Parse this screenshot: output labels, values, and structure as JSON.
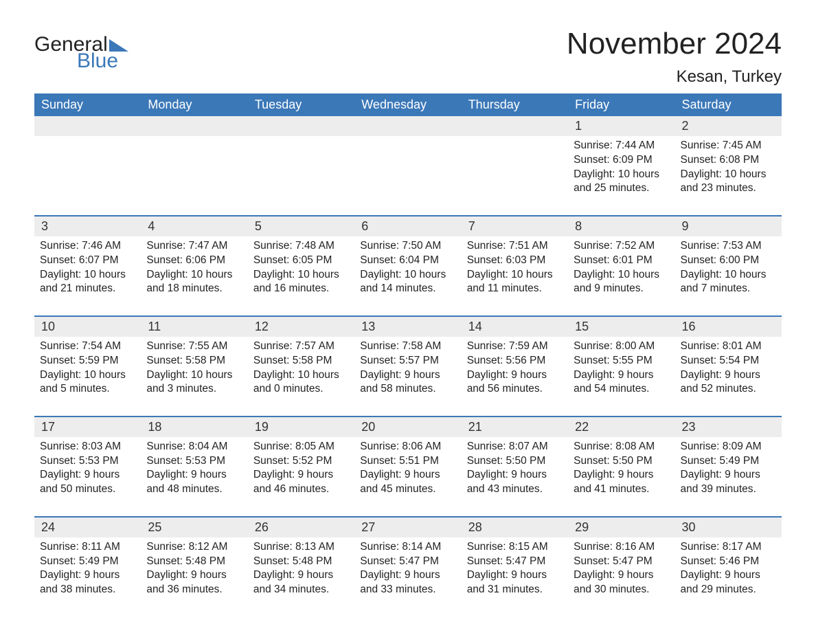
{
  "logo": {
    "general": "General",
    "blue": "Blue",
    "triangle_color": "#3b78b8"
  },
  "title": "November 2024",
  "location": "Kesan, Turkey",
  "colors": {
    "header_bg": "#3b78b8",
    "header_text": "#ffffff",
    "daynum_bg": "#ededed",
    "row_border": "#3b78b8",
    "text": "#222222",
    "background": "#ffffff"
  },
  "weekdays": [
    "Sunday",
    "Monday",
    "Tuesday",
    "Wednesday",
    "Thursday",
    "Friday",
    "Saturday"
  ],
  "labels": {
    "sunrise": "Sunrise:",
    "sunset": "Sunset:",
    "daylight": "Daylight:"
  },
  "weeks": [
    [
      null,
      null,
      null,
      null,
      null,
      {
        "day": "1",
        "sunrise": "7:44 AM",
        "sunset": "6:09 PM",
        "daylight": "10 hours and 25 minutes."
      },
      {
        "day": "2",
        "sunrise": "7:45 AM",
        "sunset": "6:08 PM",
        "daylight": "10 hours and 23 minutes."
      }
    ],
    [
      {
        "day": "3",
        "sunrise": "7:46 AM",
        "sunset": "6:07 PM",
        "daylight": "10 hours and 21 minutes."
      },
      {
        "day": "4",
        "sunrise": "7:47 AM",
        "sunset": "6:06 PM",
        "daylight": "10 hours and 18 minutes."
      },
      {
        "day": "5",
        "sunrise": "7:48 AM",
        "sunset": "6:05 PM",
        "daylight": "10 hours and 16 minutes."
      },
      {
        "day": "6",
        "sunrise": "7:50 AM",
        "sunset": "6:04 PM",
        "daylight": "10 hours and 14 minutes."
      },
      {
        "day": "7",
        "sunrise": "7:51 AM",
        "sunset": "6:03 PM",
        "daylight": "10 hours and 11 minutes."
      },
      {
        "day": "8",
        "sunrise": "7:52 AM",
        "sunset": "6:01 PM",
        "daylight": "10 hours and 9 minutes."
      },
      {
        "day": "9",
        "sunrise": "7:53 AM",
        "sunset": "6:00 PM",
        "daylight": "10 hours and 7 minutes."
      }
    ],
    [
      {
        "day": "10",
        "sunrise": "7:54 AM",
        "sunset": "5:59 PM",
        "daylight": "10 hours and 5 minutes."
      },
      {
        "day": "11",
        "sunrise": "7:55 AM",
        "sunset": "5:58 PM",
        "daylight": "10 hours and 3 minutes."
      },
      {
        "day": "12",
        "sunrise": "7:57 AM",
        "sunset": "5:58 PM",
        "daylight": "10 hours and 0 minutes."
      },
      {
        "day": "13",
        "sunrise": "7:58 AM",
        "sunset": "5:57 PM",
        "daylight": "9 hours and 58 minutes."
      },
      {
        "day": "14",
        "sunrise": "7:59 AM",
        "sunset": "5:56 PM",
        "daylight": "9 hours and 56 minutes."
      },
      {
        "day": "15",
        "sunrise": "8:00 AM",
        "sunset": "5:55 PM",
        "daylight": "9 hours and 54 minutes."
      },
      {
        "day": "16",
        "sunrise": "8:01 AM",
        "sunset": "5:54 PM",
        "daylight": "9 hours and 52 minutes."
      }
    ],
    [
      {
        "day": "17",
        "sunrise": "8:03 AM",
        "sunset": "5:53 PM",
        "daylight": "9 hours and 50 minutes."
      },
      {
        "day": "18",
        "sunrise": "8:04 AM",
        "sunset": "5:53 PM",
        "daylight": "9 hours and 48 minutes."
      },
      {
        "day": "19",
        "sunrise": "8:05 AM",
        "sunset": "5:52 PM",
        "daylight": "9 hours and 46 minutes."
      },
      {
        "day": "20",
        "sunrise": "8:06 AM",
        "sunset": "5:51 PM",
        "daylight": "9 hours and 45 minutes."
      },
      {
        "day": "21",
        "sunrise": "8:07 AM",
        "sunset": "5:50 PM",
        "daylight": "9 hours and 43 minutes."
      },
      {
        "day": "22",
        "sunrise": "8:08 AM",
        "sunset": "5:50 PM",
        "daylight": "9 hours and 41 minutes."
      },
      {
        "day": "23",
        "sunrise": "8:09 AM",
        "sunset": "5:49 PM",
        "daylight": "9 hours and 39 minutes."
      }
    ],
    [
      {
        "day": "24",
        "sunrise": "8:11 AM",
        "sunset": "5:49 PM",
        "daylight": "9 hours and 38 minutes."
      },
      {
        "day": "25",
        "sunrise": "8:12 AM",
        "sunset": "5:48 PM",
        "daylight": "9 hours and 36 minutes."
      },
      {
        "day": "26",
        "sunrise": "8:13 AM",
        "sunset": "5:48 PM",
        "daylight": "9 hours and 34 minutes."
      },
      {
        "day": "27",
        "sunrise": "8:14 AM",
        "sunset": "5:47 PM",
        "daylight": "9 hours and 33 minutes."
      },
      {
        "day": "28",
        "sunrise": "8:15 AM",
        "sunset": "5:47 PM",
        "daylight": "9 hours and 31 minutes."
      },
      {
        "day": "29",
        "sunrise": "8:16 AM",
        "sunset": "5:47 PM",
        "daylight": "9 hours and 30 minutes."
      },
      {
        "day": "30",
        "sunrise": "8:17 AM",
        "sunset": "5:46 PM",
        "daylight": "9 hours and 29 minutes."
      }
    ]
  ]
}
